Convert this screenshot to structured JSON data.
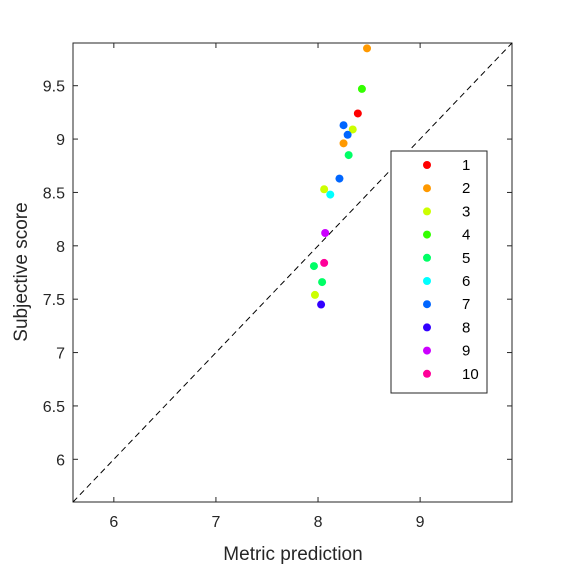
{
  "chart_data": {
    "type": "scatter",
    "title": "",
    "xlabel": "Metric prediction",
    "ylabel": "Subjective score",
    "xlim": [
      5.6,
      9.9
    ],
    "ylim": [
      5.6,
      9.9
    ],
    "xticks": [
      6,
      7,
      8,
      9
    ],
    "yticks": [
      6,
      6.5,
      7,
      7.5,
      8,
      8.5,
      9,
      9.5
    ],
    "xtick_labels": [
      "6",
      "7",
      "8",
      "9"
    ],
    "ytick_labels": [
      "6",
      "6.5",
      "7",
      "7.5",
      "8",
      "8.5",
      "9",
      "9.5"
    ],
    "grid": false,
    "reference_line": "y = x (dashed)",
    "legend_position": "right",
    "series": [
      {
        "name": "1",
        "color": "#ff0000",
        "points": [
          [
            8.39,
            9.24
          ]
        ]
      },
      {
        "name": "2",
        "color": "#ff9900",
        "points": [
          [
            8.48,
            9.85
          ],
          [
            8.25,
            8.96
          ]
        ]
      },
      {
        "name": "3",
        "color": "#ccff00",
        "points": [
          [
            8.34,
            9.09
          ],
          [
            8.06,
            8.53
          ],
          [
            7.97,
            7.54
          ]
        ]
      },
      {
        "name": "4",
        "color": "#33ff00",
        "points": [
          [
            8.43,
            9.47
          ]
        ]
      },
      {
        "name": "5",
        "color": "#00ff66",
        "points": [
          [
            8.3,
            8.85
          ],
          [
            7.96,
            7.81
          ],
          [
            8.04,
            7.66
          ]
        ]
      },
      {
        "name": "6",
        "color": "#00ffff",
        "points": [
          [
            8.12,
            8.48
          ]
        ]
      },
      {
        "name": "7",
        "color": "#0066ff",
        "points": [
          [
            8.25,
            9.13
          ],
          [
            8.29,
            9.04
          ],
          [
            8.21,
            8.63
          ]
        ]
      },
      {
        "name": "8",
        "color": "#3300ff",
        "points": [
          [
            8.03,
            7.45
          ]
        ]
      },
      {
        "name": "9",
        "color": "#cc00ff",
        "points": [
          [
            8.07,
            8.12
          ]
        ]
      },
      {
        "name": "10",
        "color": "#ff0099",
        "points": [
          [
            8.06,
            7.84
          ]
        ]
      }
    ]
  }
}
